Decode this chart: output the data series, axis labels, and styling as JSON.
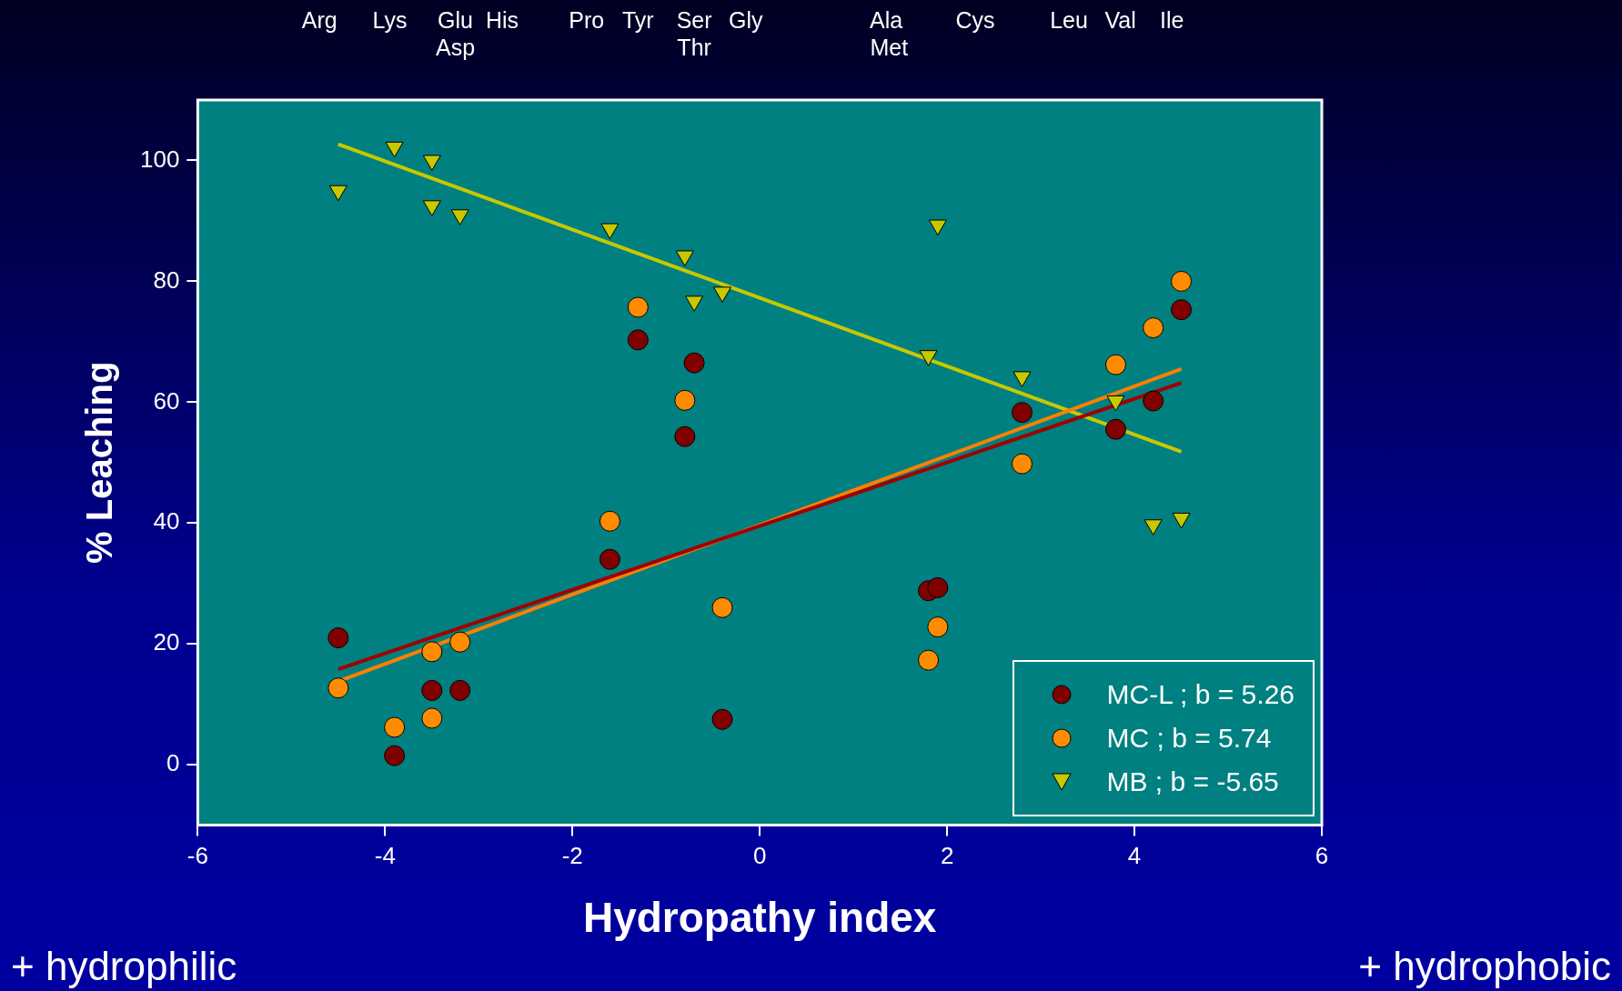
{
  "chart_data": {
    "type": "scatter",
    "xlabel": "Hydropathy index",
    "ylabel": "% Leaching",
    "xlim": [
      -6,
      6
    ],
    "xticks": [
      -6,
      -4,
      -2,
      0,
      2,
      4,
      6
    ],
    "ylim": [
      -10,
      110
    ],
    "yticks": [
      0,
      20,
      40,
      60,
      80,
      100
    ],
    "grid": false,
    "legend": "bottom right",
    "annotations": [
      "+ hydrophilic",
      "+ hydrophobic",
      "Arg",
      "Lys",
      "Glu",
      "His",
      "Asp",
      "Pro",
      "Tyr",
      "Ser",
      "Gly",
      "Thr",
      "Ala",
      "Met",
      "Cys",
      "Leu",
      "Val",
      "Ile"
    ],
    "series": [
      {
        "name": "MC-L ; b = 5.26",
        "marker": "circle",
        "color": "#800000",
        "x": [
          -4.5,
          -3.9,
          -3.5,
          -3.2,
          -1.6,
          -1.3,
          -0.7,
          -0.8,
          -0.4,
          1.8,
          1.9,
          2.8,
          3.8,
          4.2,
          4.5
        ],
        "values": [
          21,
          1.5,
          12.3,
          12.3,
          34,
          70.3,
          66.5,
          54.3,
          7.5,
          28.8,
          29.3,
          58.3,
          55.5,
          60.2,
          75.3
        ]
      },
      {
        "name": "MC ; b = 5.74",
        "marker": "circle",
        "color": "#ff8c00",
        "x": [
          -4.5,
          -3.9,
          -3.5,
          -3.5,
          -3.2,
          -1.6,
          -1.3,
          -0.8,
          -0.4,
          1.8,
          1.9,
          2.8,
          3.8,
          4.2,
          4.5
        ],
        "values": [
          12.7,
          6.2,
          18.7,
          7.7,
          20.3,
          40.3,
          75.7,
          60.3,
          26,
          17.3,
          22.8,
          49.8,
          66.2,
          72.3,
          80
        ]
      },
      {
        "name": "MB ; b = -5.65",
        "marker": "triangle",
        "color": "#c8c800",
        "x": [
          -4.5,
          -3.9,
          -3.5,
          -3.5,
          -3.2,
          -1.6,
          -0.8,
          -0.7,
          -0.4,
          1.8,
          1.9,
          2.8,
          3.8,
          4.2,
          4.5
        ],
        "values": [
          95,
          102.2,
          100,
          92.5,
          91,
          88.7,
          84.2,
          76.7,
          78.2,
          67.7,
          89.3,
          64.2,
          60.2,
          39.7,
          40.8
        ]
      },
      {
        "type": "line",
        "color": "#a00000",
        "x": [
          -4.5,
          4.5
        ],
        "values": [
          15.8,
          63.2
        ]
      },
      {
        "type": "line",
        "color": "#ff8000",
        "x": [
          -4.5,
          4.5
        ],
        "values": [
          13.8,
          65.5
        ]
      },
      {
        "type": "line",
        "color": "#c8c800",
        "x": [
          -4.5,
          4.5
        ],
        "values": [
          102.7,
          51.8
        ]
      }
    ]
  }
}
